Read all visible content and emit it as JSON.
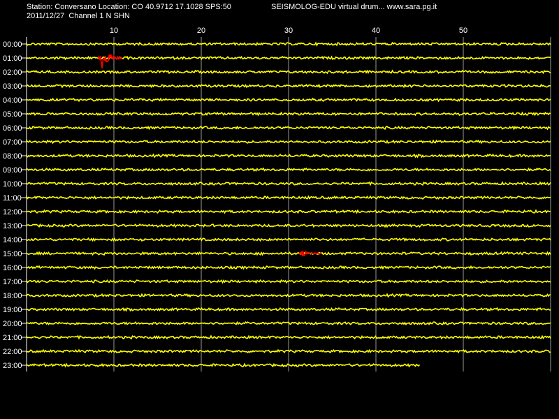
{
  "header": {
    "station_line": "Station: Conversano Location: CO 40.9712 17.1028 SPS:50",
    "date_line": "2011/12/27  Channel 1 N SHN",
    "title": "SEISMOLOG-EDU virtual drum... www.sara.pg.it"
  },
  "colors": {
    "background": "#000000",
    "trace": "#ffff00",
    "event": "#ff0000",
    "grid": "#9a9a9a",
    "text": "#ffffff"
  },
  "chart_data": {
    "type": "line",
    "x_unit": "minutes",
    "xlim": [
      0,
      60
    ],
    "x_ticks": [
      10,
      20,
      30,
      40,
      50
    ],
    "x_tick_labels": [
      "10",
      "20",
      "30",
      "40",
      "50"
    ],
    "hours": [
      "00:00",
      "01:00",
      "02:00",
      "03:00",
      "04:00",
      "05:00",
      "06:00",
      "07:00",
      "08:00",
      "09:00",
      "10:00",
      "11:00",
      "12:00",
      "13:00",
      "14:00",
      "15:00",
      "16:00",
      "17:00",
      "18:00",
      "19:00",
      "20:00",
      "21:00",
      "22:00",
      "23:00"
    ],
    "last_row_end_minute": 45,
    "events": [
      {
        "hour": "01:00",
        "start_minute": 8.2,
        "end_minute": 11.0,
        "peak_minute": 8.6,
        "amplitude": "large"
      },
      {
        "hour": "15:00",
        "start_minute": 31.2,
        "end_minute": 33.8,
        "peak_minute": 31.6,
        "amplitude": "small"
      }
    ],
    "grid": true
  }
}
